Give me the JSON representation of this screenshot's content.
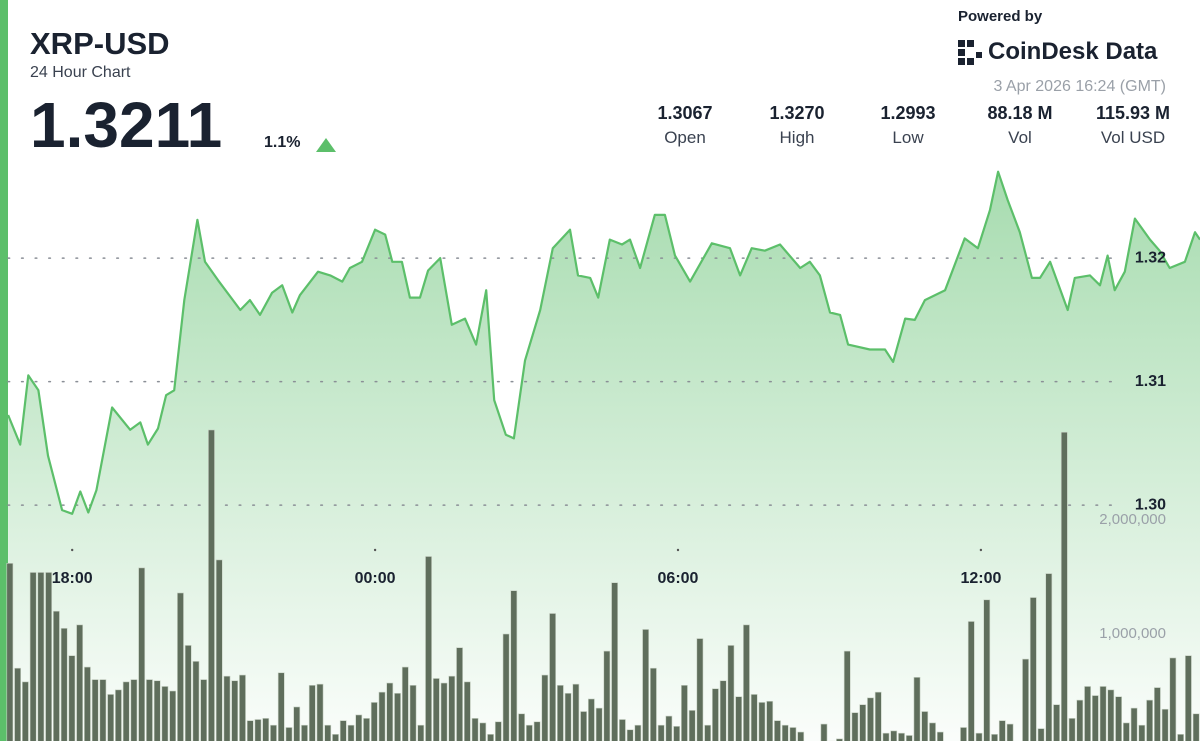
{
  "header": {
    "title": "XRP-USD",
    "subtitle": "24 Hour Chart",
    "price": "1.3211",
    "change": "1.1%",
    "powered_by": "Powered by",
    "brand": "CoinDesk Data",
    "timestamp": "3 Apr 2026 16:24 (GMT)",
    "stats": [
      {
        "value": "1.3067",
        "label": "Open"
      },
      {
        "value": "1.3270",
        "label": "High"
      },
      {
        "value": "1.2993",
        "label": "Low"
      },
      {
        "value": "88.18 M",
        "label": "Vol"
      },
      {
        "value": "115.93 M",
        "label": "Vol USD"
      }
    ]
  },
  "chart_data": {
    "type": "line",
    "xlim": [
      16.57,
      40.34
    ],
    "xticks": [
      {
        "value": 18,
        "label": "18:00"
      },
      {
        "value": 24,
        "label": "00:00"
      },
      {
        "value": 30,
        "label": "06:00"
      },
      {
        "value": 36,
        "label": "12:00"
      }
    ],
    "ylim": [
      1.2809,
      1.3409
    ],
    "yticks": [
      {
        "value": 1.3,
        "label": "1.30"
      },
      {
        "value": 1.31,
        "label": "1.31"
      },
      {
        "value": 1.32,
        "label": "1.32"
      }
    ],
    "y2lim": [
      0,
      6500000
    ],
    "y2ticks": [
      {
        "value": 1000000,
        "label": "1,000,000"
      },
      {
        "value": 2000000,
        "label": "2,000,000"
      }
    ],
    "grid": true,
    "series": [
      {
        "color": "#5cbf6a",
        "x": [
          16.73,
          16.97,
          17.13,
          17.33,
          17.52,
          17.8,
          18.0,
          18.16,
          18.32,
          18.48,
          18.79,
          19.15,
          19.35,
          19.5,
          19.7,
          19.86,
          20.02,
          20.22,
          20.48,
          20.63,
          20.89,
          21.33,
          21.52,
          21.72,
          21.96,
          22.16,
          22.36,
          22.51,
          22.87,
          23.11,
          23.35,
          23.5,
          23.74,
          24.0,
          24.2,
          24.34,
          24.53,
          24.69,
          24.89,
          25.05,
          25.29,
          25.52,
          25.78,
          26.0,
          26.2,
          26.36,
          26.59,
          26.75,
          26.97,
          27.27,
          27.52,
          27.86,
          28.02,
          28.26,
          28.42,
          28.65,
          28.89,
          29.05,
          29.25,
          29.54,
          29.74,
          29.94,
          30.24,
          30.67,
          31.03,
          31.23,
          31.46,
          31.72,
          32.02,
          32.42,
          32.61,
          32.81,
          33.01,
          33.21,
          33.37,
          33.8,
          34.1,
          34.26,
          34.5,
          34.69,
          34.89,
          35.29,
          35.68,
          35.94,
          36.18,
          36.34,
          36.53,
          36.77,
          37.01,
          37.17,
          37.37,
          37.72,
          37.86,
          38.16,
          38.36,
          38.51,
          38.65,
          38.85,
          39.05,
          39.35,
          39.54,
          39.74,
          40.04,
          40.24,
          40.34
        ],
        "values": [
          1.3073,
          1.3049,
          1.3105,
          1.3093,
          1.304,
          1.2996,
          1.2993,
          1.3011,
          1.2994,
          1.3012,
          1.3079,
          1.3061,
          1.3067,
          1.3049,
          1.3062,
          1.3089,
          1.3093,
          1.3166,
          1.3231,
          1.3197,
          1.3182,
          1.3158,
          1.3166,
          1.3154,
          1.3172,
          1.3178,
          1.3156,
          1.317,
          1.3189,
          1.3186,
          1.3181,
          1.3192,
          1.3197,
          1.3223,
          1.3219,
          1.3197,
          1.3197,
          1.3168,
          1.3168,
          1.319,
          1.32,
          1.3146,
          1.3151,
          1.313,
          1.3174,
          1.3085,
          1.3057,
          1.3054,
          1.3117,
          1.3158,
          1.3208,
          1.3223,
          1.3186,
          1.3184,
          1.3168,
          1.3215,
          1.3211,
          1.3215,
          1.3192,
          1.3235,
          1.3235,
          1.3202,
          1.3181,
          1.3212,
          1.3208,
          1.3186,
          1.3208,
          1.3206,
          1.3211,
          1.3192,
          1.3197,
          1.3186,
          1.3156,
          1.3154,
          1.313,
          1.3126,
          1.3126,
          1.3116,
          1.3151,
          1.315,
          1.3166,
          1.3174,
          1.3216,
          1.3208,
          1.3239,
          1.327,
          1.3247,
          1.3221,
          1.3184,
          1.3184,
          1.3197,
          1.3158,
          1.3184,
          1.3186,
          1.3178,
          1.3202,
          1.3174,
          1.3189,
          1.3232,
          1.3215,
          1.3206,
          1.3192,
          1.3197,
          1.3221,
          1.3215
        ]
      },
      {
        "color": "#5f6e5c",
        "axis": "y2",
        "values": [
          1620000,
          700000,
          580000,
          1540000,
          1540000,
          1540000,
          1200000,
          1050000,
          810000,
          1080000,
          710000,
          600000,
          600000,
          470000,
          510000,
          580000,
          600000,
          1580000,
          600000,
          590000,
          540000,
          500000,
          1360000,
          900000,
          760000,
          600000,
          2790000,
          1650000,
          630000,
          590000,
          640000,
          240000,
          250000,
          260000,
          200000,
          660000,
          180000,
          360000,
          200000,
          550000,
          560000,
          200000,
          120000,
          240000,
          200000,
          290000,
          260000,
          400000,
          490000,
          570000,
          480000,
          710000,
          550000,
          200000,
          1680000,
          610000,
          570000,
          630000,
          880000,
          580000,
          260000,
          220000,
          120000,
          230000,
          1000000,
          1380000,
          300000,
          200000,
          230000,
          640000,
          1180000,
          550000,
          480000,
          560000,
          320000,
          430000,
          350000,
          850000,
          1450000,
          250000,
          160000,
          200000,
          1040000,
          700000,
          200000,
          280000,
          190000,
          550000,
          330000,
          960000,
          200000,
          520000,
          590000,
          900000,
          450000,
          1080000,
          470000,
          400000,
          410000,
          240000,
          200000,
          180000,
          140000,
          50000,
          30000,
          210000,
          60000,
          80000,
          850000,
          310000,
          380000,
          440000,
          490000,
          130000,
          150000,
          130000,
          110000,
          620000,
          320000,
          220000,
          140000,
          50000,
          20000,
          180000,
          1110000,
          130000,
          1300000,
          120000,
          240000,
          210000,
          40000,
          780000,
          1320000,
          170000,
          1530000,
          380000,
          2770000,
          260000,
          420000,
          540000,
          460000,
          540000,
          510000,
          450000,
          220000,
          350000,
          200000,
          420000,
          530000,
          340000,
          790000,
          120000,
          810000,
          300000
        ]
      }
    ]
  }
}
